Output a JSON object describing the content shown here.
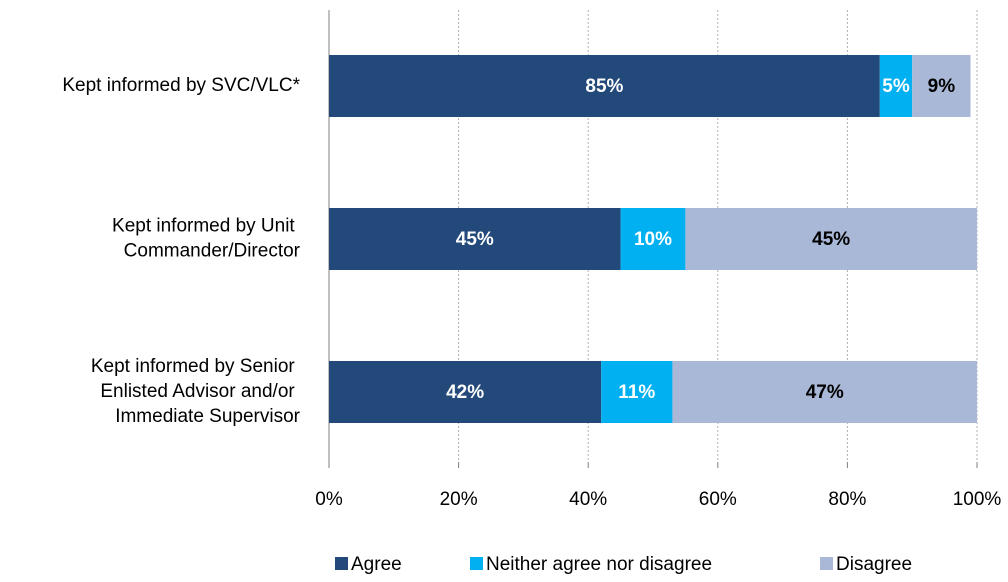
{
  "chart_data": {
    "type": "stacked-barh",
    "categories": [
      "Kept informed by SVC/VLC*",
      "Kept informed by Unit Commander/Director",
      "Kept informed by Senior Enlisted Advisor and/or Immediate Supervisor"
    ],
    "series": [
      {
        "name": "Agree",
        "color": "#23497a",
        "text_color": "#ffffff",
        "values": [
          85,
          45,
          42
        ],
        "value_labels": [
          "85%",
          "45%",
          "42%"
        ]
      },
      {
        "name": "Neither agree nor disagree",
        "color": "#00b0f0",
        "text_color": "#ffffff",
        "values": [
          5,
          10,
          11
        ],
        "value_labels": [
          "5%",
          "10%",
          "11%"
        ]
      },
      {
        "name": "Disagree",
        "color": "#a9b8d6",
        "text_color": "#000000",
        "values": [
          9,
          45,
          47
        ],
        "value_labels": [
          "9%",
          "45%",
          "47%"
        ]
      }
    ],
    "xlim": [
      0,
      100
    ],
    "xticks": [
      {
        "value": 0,
        "label": "0%"
      },
      {
        "value": 20,
        "label": "20%"
      },
      {
        "value": 40,
        "label": "40%"
      },
      {
        "value": 60,
        "label": "60%"
      },
      {
        "value": 80,
        "label": "80%"
      },
      {
        "value": 100,
        "label": "100%"
      }
    ],
    "grid": true,
    "legend": "bottom"
  }
}
